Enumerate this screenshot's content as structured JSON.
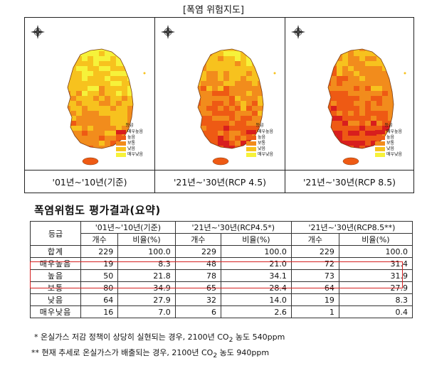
{
  "title": "[폭염 위험지도]",
  "maps": [
    {
      "caption": "'01년~'10년(기준)"
    },
    {
      "caption": "'21년~'30년(RCP 4.5)"
    },
    {
      "caption": "'21년~'30년(RCP 8.5)"
    }
  ],
  "legend": {
    "title": "등급",
    "items": [
      {
        "label": "매우높음",
        "color": "#d81e1e"
      },
      {
        "label": "높음",
        "color": "#ee5a14"
      },
      {
        "label": "보통",
        "color": "#f28c1c"
      },
      {
        "label": "낮음",
        "color": "#f7c21e"
      },
      {
        "label": "매우낮음",
        "color": "#f6f23a"
      }
    ]
  },
  "table_title": "폭염위험도 평가결과(요약)",
  "table": {
    "grade_header": "등급",
    "periods": [
      "'01년~'10년(기준)",
      "'21년~'30년(RCP4.5*)",
      "'21년~'30년(RCP8.5**)"
    ],
    "sub_headers": [
      "개수",
      "비율(%)"
    ],
    "rows": [
      {
        "grade": "합계",
        "values": [
          "229",
          "100.0",
          "229",
          "100.0",
          "229",
          "100.0"
        ]
      },
      {
        "grade": "매우높음",
        "values": [
          "19",
          "8.3",
          "48",
          "21.0",
          "72",
          "31.4"
        ]
      },
      {
        "grade": "높음",
        "values": [
          "50",
          "21.8",
          "78",
          "34.1",
          "73",
          "31.9"
        ]
      },
      {
        "grade": "보통",
        "values": [
          "80",
          "34.9",
          "65",
          "28.4",
          "64",
          "27.9"
        ]
      },
      {
        "grade": "낮음",
        "values": [
          "64",
          "27.9",
          "32",
          "14.0",
          "19",
          "8.3"
        ]
      },
      {
        "grade": "매우낮음",
        "values": [
          "16",
          "7.0",
          "6",
          "2.6",
          "1",
          "0.4"
        ]
      }
    ]
  },
  "notes": {
    "n1_pre": "* 온실가스 저감 정책이 상당히 실현되는 경우, 2100년 CO",
    "n1_sub": "2",
    "n1_post": " 농도 540ppm",
    "n2_pre": "** 현재 추세로 온실가스가 배출되는 경우, 2100년 CO",
    "n2_sub": "2",
    "n2_post": " 농도 940ppm"
  }
}
